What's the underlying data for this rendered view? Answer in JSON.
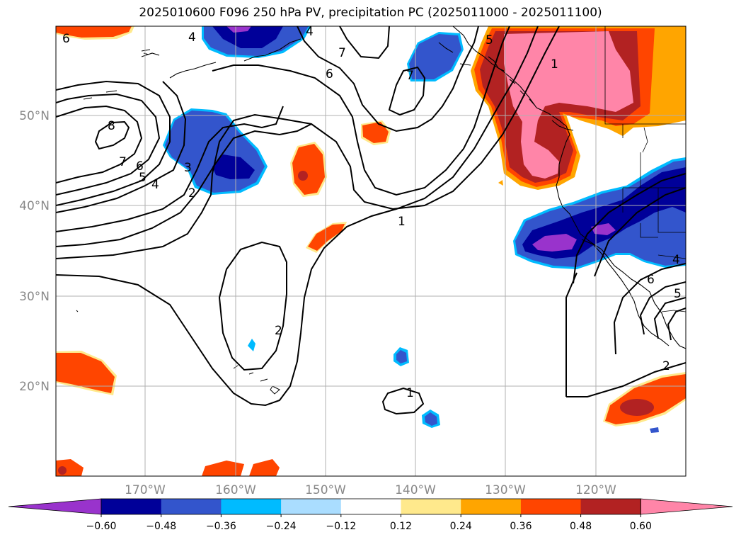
{
  "title": "2025010600 F096 250 hPa PV, precipitation PC (2025011000 - 2025011100)",
  "lat_labels": [
    "50°N",
    "40°N",
    "30°N",
    "20°N"
  ],
  "lon_labels": [
    "170°W",
    "160°W",
    "150°W",
    "140°W",
    "130°W",
    "120°W"
  ],
  "contour_labels": [
    "8",
    "7",
    "6",
    "5",
    "4",
    "3",
    "2",
    "6",
    "4",
    "7",
    "6",
    "7",
    "5",
    "4",
    "1",
    "2",
    "1",
    "1",
    "2",
    "4",
    "5",
    "6"
  ],
  "colorbar": {
    "colors": [
      "#9933cc",
      "#000099",
      "#3355cc",
      "#00bbff",
      "#aaddff",
      "#ffffff",
      "#ffe98c",
      "#ffa500",
      "#ff4500",
      "#b22222",
      "#ff85a8"
    ],
    "tick_labels": [
      "−0.60",
      "−0.48",
      "−0.36",
      "−0.24",
      "−0.12",
      "0.12",
      "0.24",
      "0.36",
      "0.48",
      "0.60"
    ]
  }
}
